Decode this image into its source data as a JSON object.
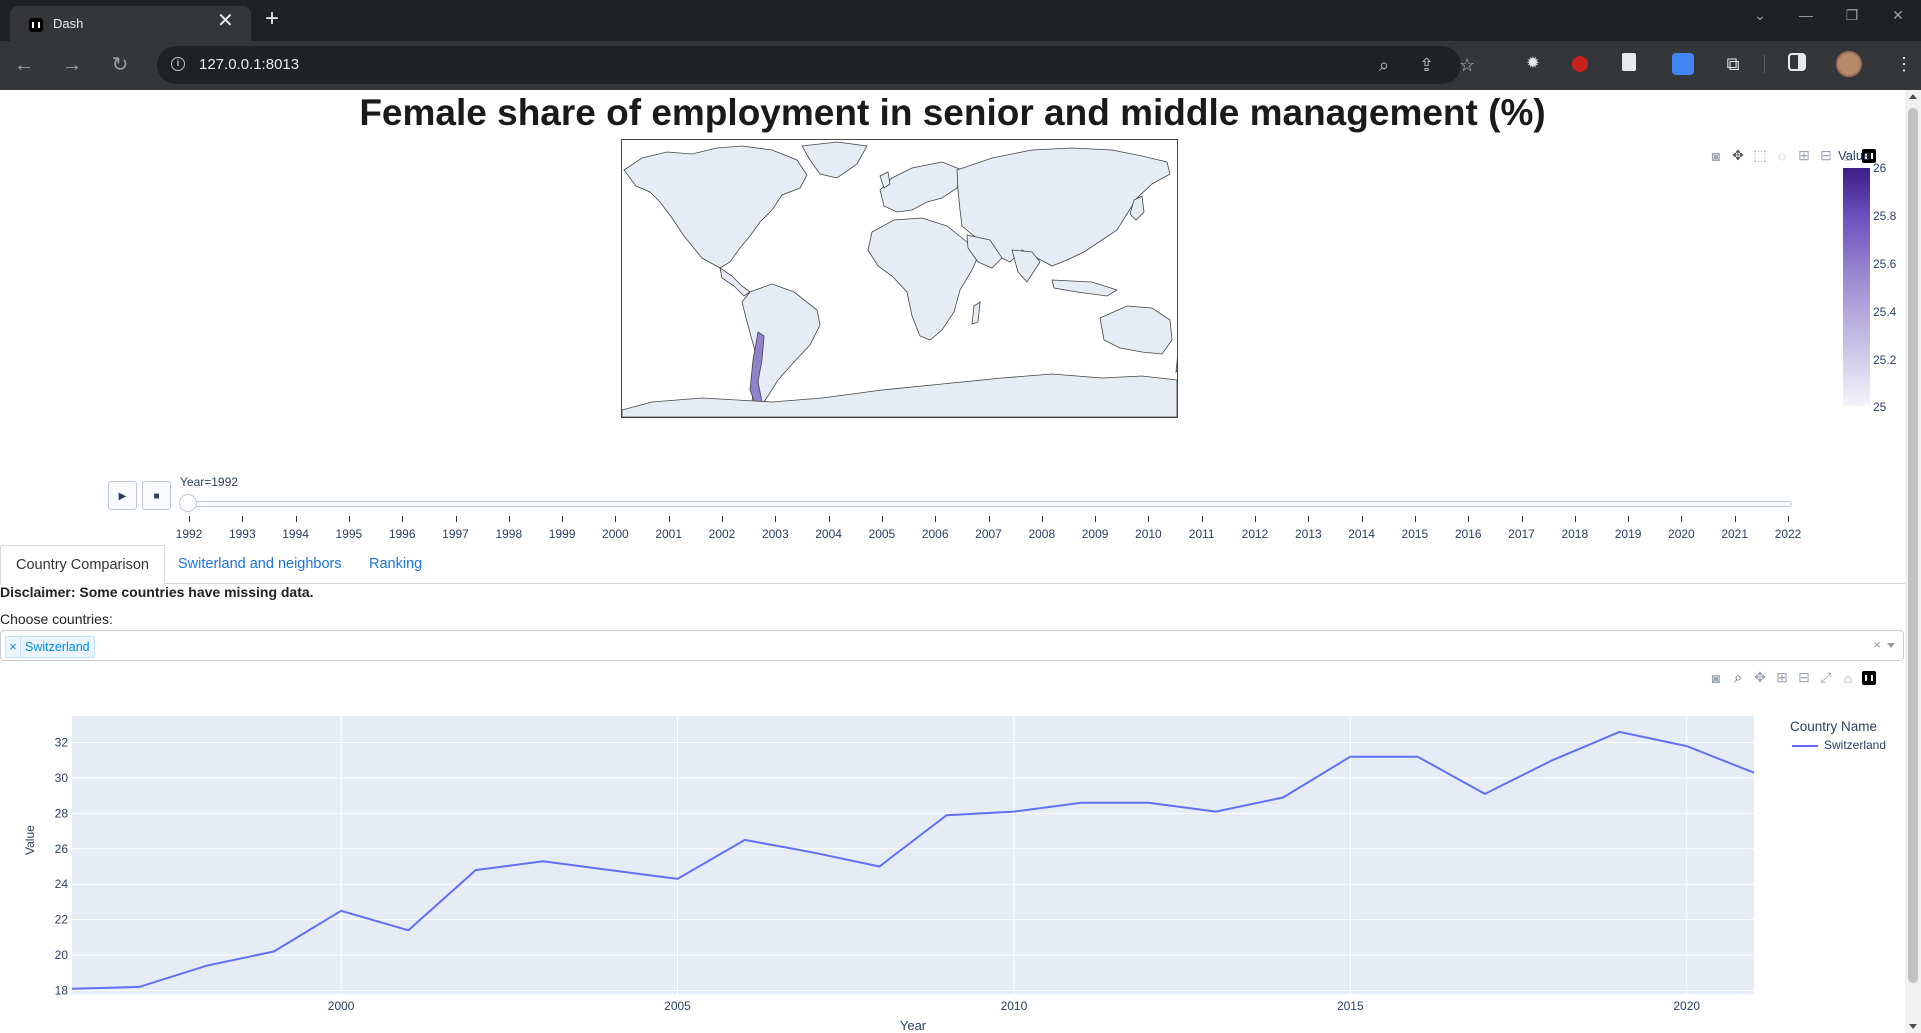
{
  "browser": {
    "tab_title": "Dash",
    "url": "127.0.0.1:8013",
    "window_controls": [
      "chevron-down-icon",
      "minimize-icon",
      "restore-icon",
      "close-icon"
    ]
  },
  "page": {
    "title": "Female share of employment in senior and middle management (%)"
  },
  "map": {
    "colorbar_title": "Value",
    "colorbar_ticks": [
      "26",
      "25.8",
      "25.6",
      "25.4",
      "25.2",
      "25"
    ],
    "colorscale": [
      "#3e1e85",
      "#6a4fbf",
      "#9a88d0",
      "#c9c3e6",
      "#f5f3fb"
    ],
    "land_color": "#e5ecf6",
    "highlight_country": "Chile"
  },
  "slider": {
    "current_label": "Year=1992",
    "play_label": "▶",
    "stop_label": "■",
    "years": [
      "1992",
      "1993",
      "1994",
      "1995",
      "1996",
      "1997",
      "1998",
      "1999",
      "2000",
      "2001",
      "2002",
      "2003",
      "2004",
      "2005",
      "2006",
      "2007",
      "2008",
      "2009",
      "2010",
      "2011",
      "2012",
      "2013",
      "2014",
      "2015",
      "2016",
      "2017",
      "2018",
      "2019",
      "2020",
      "2021",
      "2022"
    ]
  },
  "tabs": [
    {
      "label": "Country Comparison",
      "selected": true
    },
    {
      "label": "Switerland and neighbors",
      "selected": false
    },
    {
      "label": "Ranking",
      "selected": false
    }
  ],
  "content": {
    "disclaimer": "Disclaimer: Some countries have missing data.",
    "choose_label": "Choose countries:",
    "selected_countries": [
      "Switzerland"
    ],
    "chip_remove": "×",
    "clear": "×"
  },
  "chart_data": {
    "type": "line",
    "title": "",
    "xlabel": "Year",
    "ylabel": "Value",
    "legend_title": "Country Name",
    "xlim": [
      1996,
      2021
    ],
    "ylim": [
      17.8,
      33.5
    ],
    "x_ticks": [
      2000,
      2005,
      2010,
      2015,
      2020
    ],
    "y_ticks": [
      18,
      20,
      22,
      24,
      26,
      28,
      30,
      32
    ],
    "grid": true,
    "legend_position": "right",
    "series": [
      {
        "name": "Switzerland",
        "color": "#636efa",
        "x": [
          1996,
          1997,
          1998,
          1999,
          2000,
          2001,
          2002,
          2003,
          2004,
          2005,
          2006,
          2007,
          2008,
          2009,
          2010,
          2011,
          2012,
          2013,
          2014,
          2015,
          2016,
          2017,
          2018,
          2019,
          2020,
          2021
        ],
        "values": [
          18.1,
          18.2,
          19.4,
          20.2,
          22.5,
          21.4,
          24.8,
          25.3,
          24.8,
          24.3,
          26.5,
          25.8,
          25.0,
          27.9,
          28.1,
          28.6,
          28.6,
          28.1,
          28.9,
          31.2,
          31.2,
          29.1,
          31.0,
          32.6,
          31.8,
          30.3
        ]
      }
    ]
  }
}
